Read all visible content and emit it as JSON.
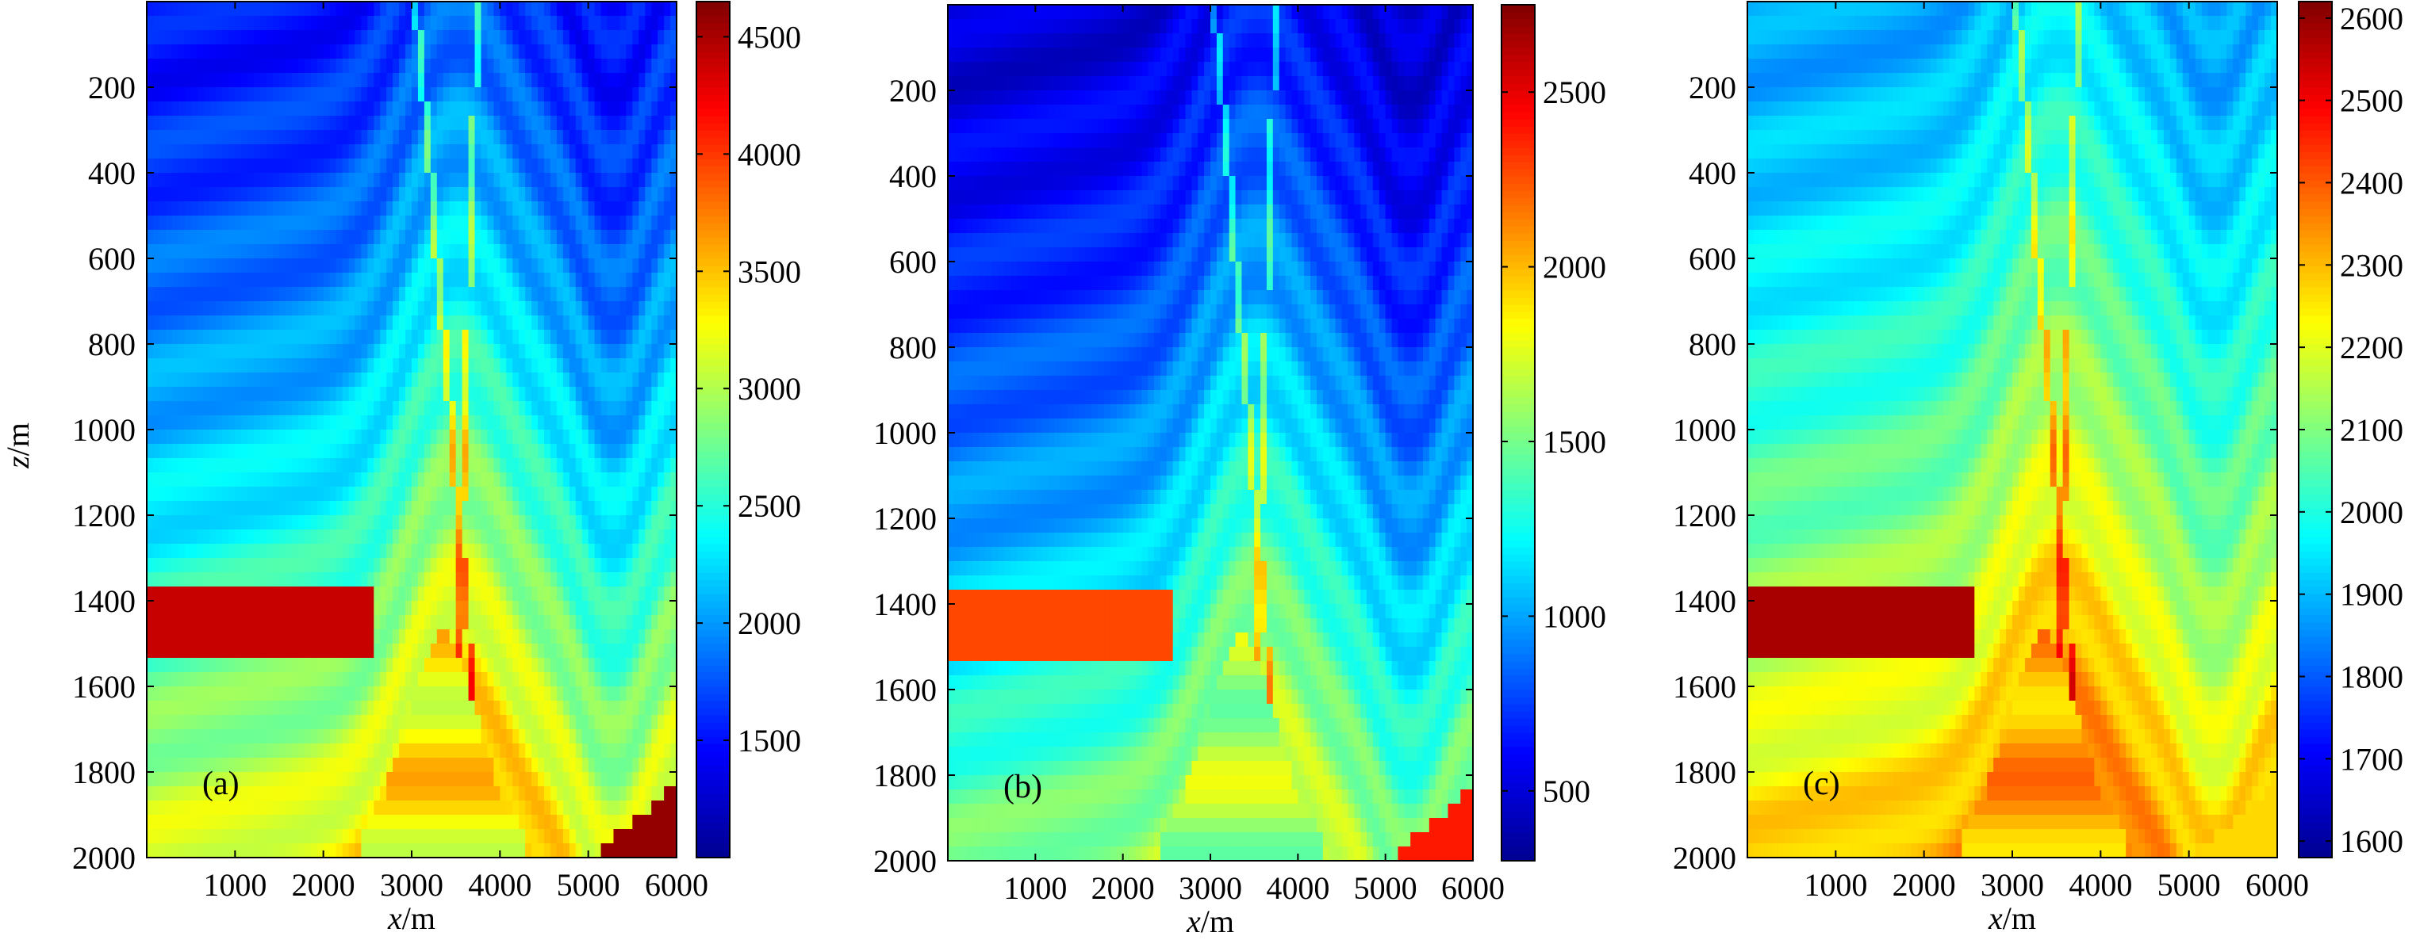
{
  "figure": {
    "colormap": [
      "#00008f",
      "#0000ff",
      "#0080ff",
      "#00ffff",
      "#80ff80",
      "#ffff00",
      "#ff8000",
      "#ff0000",
      "#800000"
    ],
    "annotation_color": "#000000"
  },
  "chart_data": [
    {
      "type": "heatmap",
      "panel_label": "(a)",
      "xlabel_var": "x",
      "xlabel_unit": "/m",
      "ylabel_var": "z",
      "ylabel_unit": "/m",
      "xlim": [
        0,
        6000
      ],
      "ylim": [
        0,
        2000
      ],
      "xticks": [
        1000,
        2000,
        3000,
        4000,
        5000,
        6000
      ],
      "yticks": [
        200,
        400,
        600,
        800,
        1000,
        1200,
        1400,
        1600,
        1800,
        2000
      ],
      "colorbar_range": [
        1000,
        4650
      ],
      "colorbar_ticks": [
        1500,
        2000,
        2500,
        3000,
        3500,
        4000,
        4500
      ],
      "show_ylabel": true
    },
    {
      "type": "heatmap",
      "panel_label": "(b)",
      "xlabel_var": "x",
      "xlabel_unit": "/m",
      "xlim": [
        0,
        6000
      ],
      "ylim": [
        0,
        2000
      ],
      "xticks": [
        1000,
        2000,
        3000,
        4000,
        5000,
        6000
      ],
      "yticks": [
        200,
        400,
        600,
        800,
        1000,
        1200,
        1400,
        1600,
        1800,
        2000
      ],
      "colorbar_range": [
        300,
        2750
      ],
      "colorbar_ticks": [
        500,
        1000,
        1500,
        2000,
        2500
      ],
      "show_ylabel": false
    },
    {
      "type": "heatmap",
      "panel_label": "(c)",
      "xlabel_var": "x",
      "xlabel_unit": "/m",
      "xlim": [
        0,
        6000
      ],
      "ylim": [
        0,
        2000
      ],
      "xticks": [
        1000,
        2000,
        3000,
        4000,
        5000,
        6000
      ],
      "yticks": [
        200,
        400,
        600,
        800,
        1000,
        1200,
        1400,
        1600,
        1800,
        2000
      ],
      "colorbar_range": [
        1580,
        2620
      ],
      "colorbar_ticks": [
        1600,
        1700,
        1800,
        1900,
        2000,
        2100,
        2200,
        2300,
        2400,
        2500,
        2600
      ],
      "show_ylabel": false
    }
  ]
}
